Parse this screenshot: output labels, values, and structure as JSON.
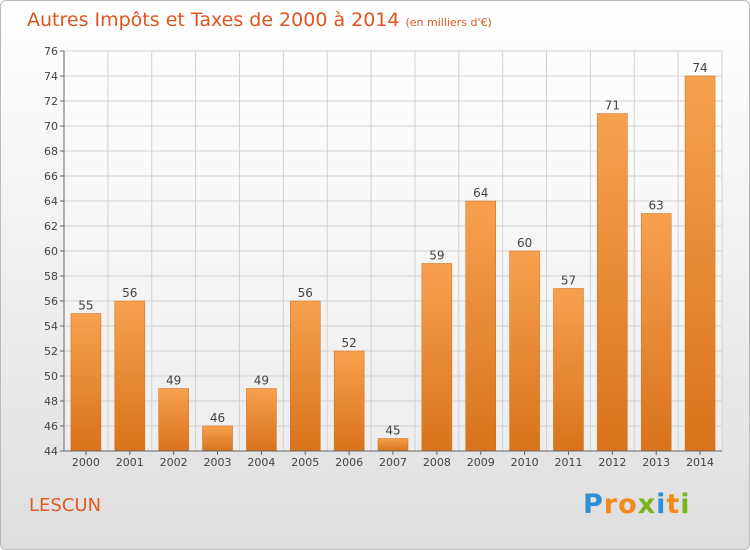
{
  "title": "Autres Impôts et Taxes de 2000 à 2014",
  "unit": "(en milliers d'€)",
  "place": "LESCUN",
  "brand": {
    "letters": [
      "P",
      "r",
      "o",
      "x",
      "i",
      "t",
      "i"
    ],
    "colors": [
      "#2f8fd6",
      "#f08a1c",
      "#f08a1c",
      "#7ab51d",
      "#2f8fd6",
      "#f08a1c",
      "#7ab51d"
    ]
  },
  "chart_data": {
    "type": "bar",
    "categories": [
      "2000",
      "2001",
      "2002",
      "2003",
      "2004",
      "2005",
      "2006",
      "2007",
      "2008",
      "2009",
      "2010",
      "2011",
      "2012",
      "2013",
      "2014"
    ],
    "values": [
      55,
      56,
      49,
      46,
      49,
      56,
      52,
      45,
      59,
      64,
      60,
      57,
      71,
      63,
      74
    ],
    "ylim": [
      44,
      76
    ],
    "yticks": [
      44,
      46,
      48,
      50,
      52,
      54,
      56,
      58,
      60,
      62,
      64,
      66,
      68,
      70,
      72,
      74,
      76
    ],
    "grid": true,
    "bar_color": "#f08c2e"
  }
}
